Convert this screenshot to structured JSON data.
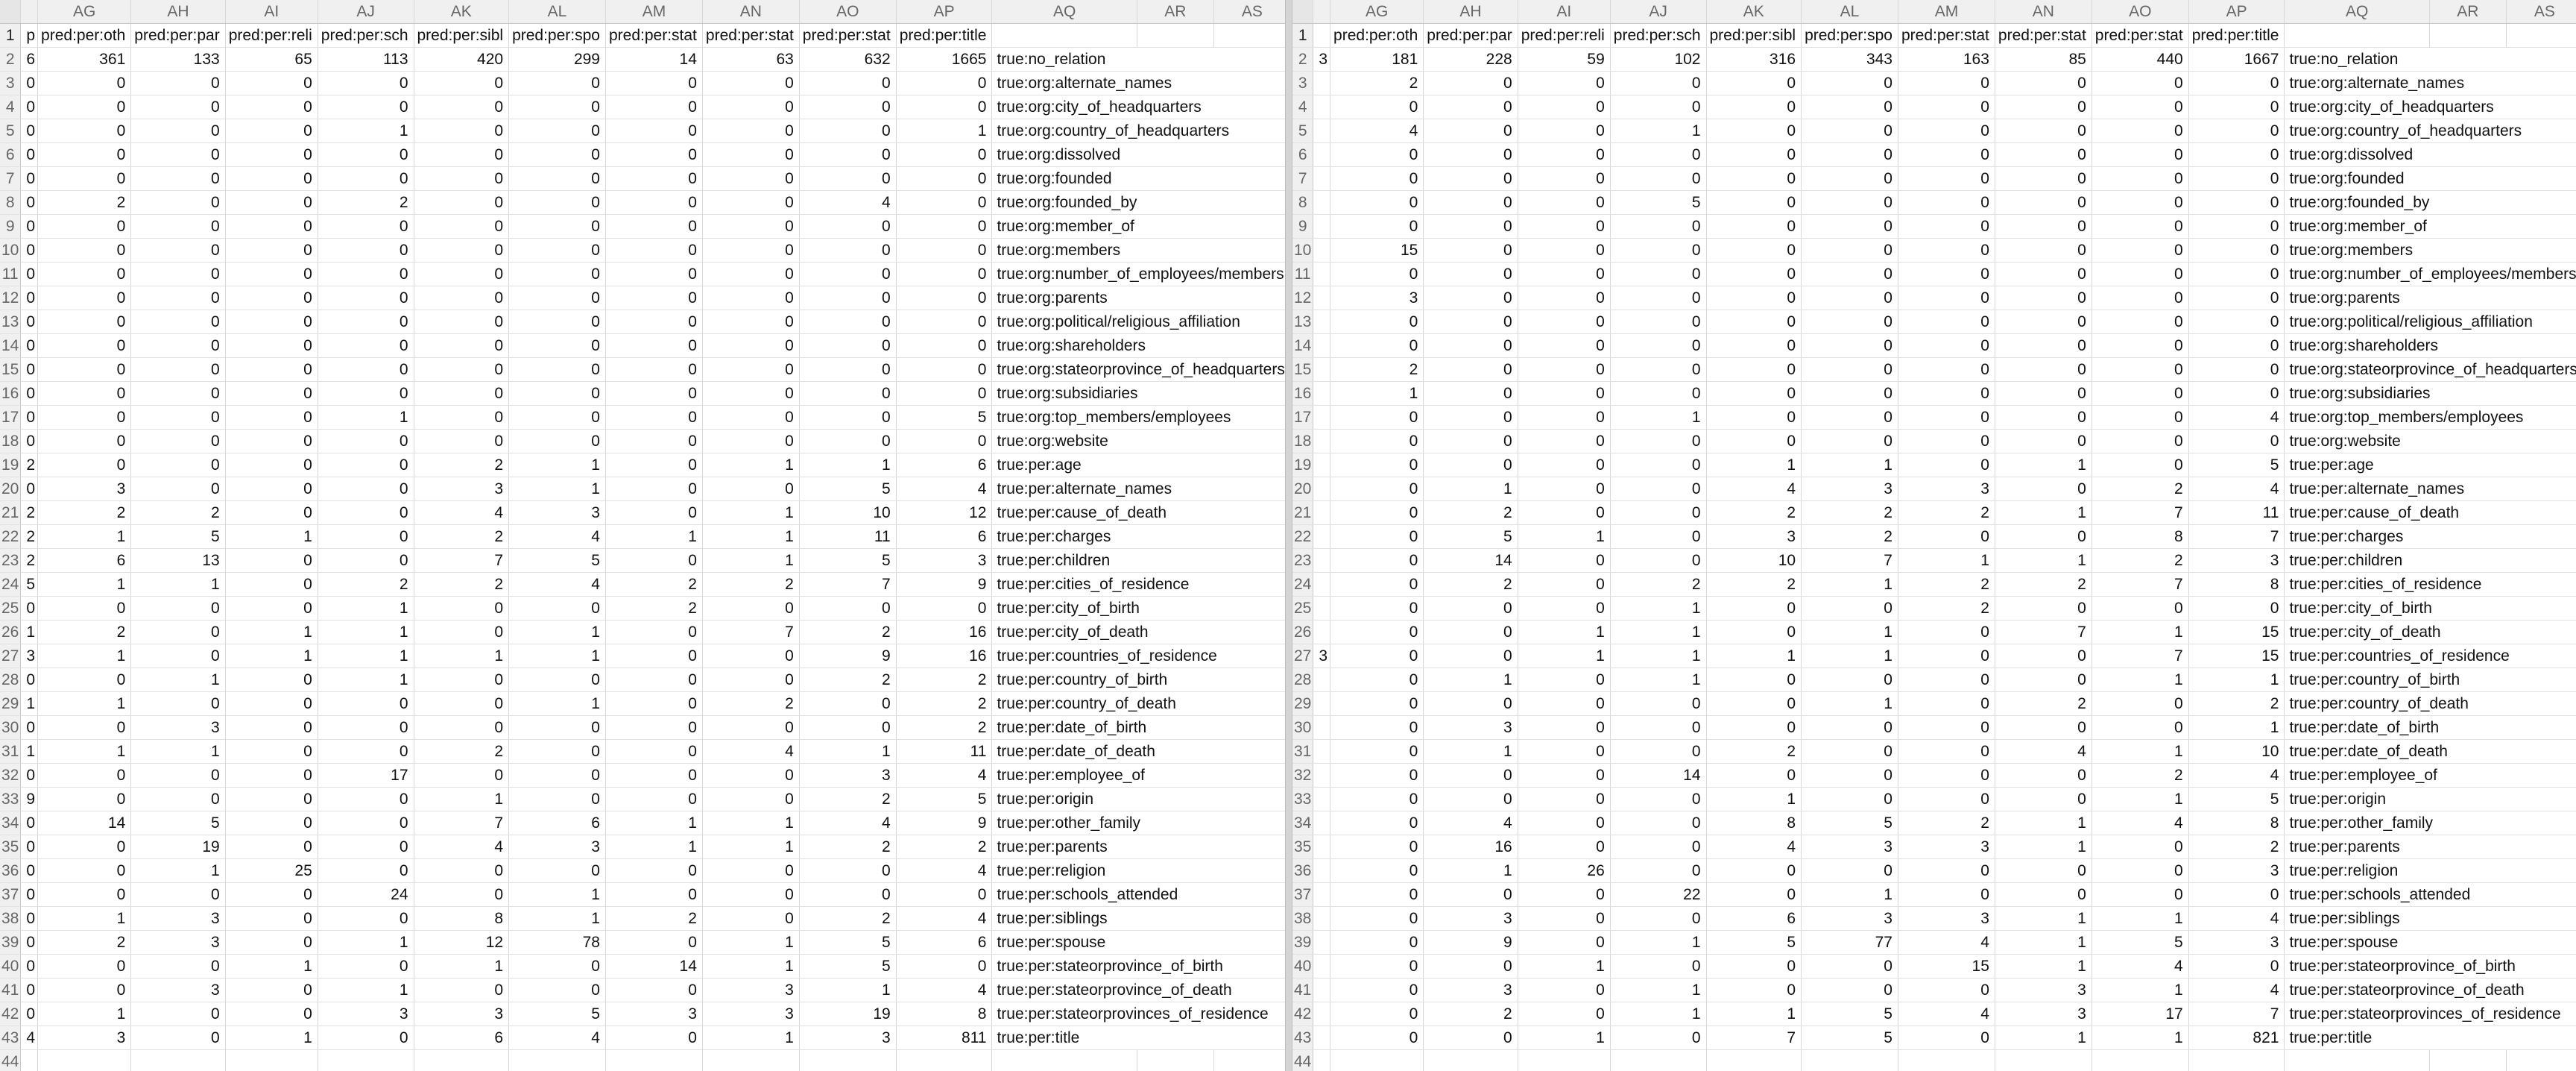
{
  "columns": [
    "AG",
    "AH",
    "AI",
    "AJ",
    "AK",
    "AL",
    "AM",
    "AN",
    "AO",
    "AP",
    "AQ",
    "AR",
    "AS"
  ],
  "row1": {
    "left_clip": "p",
    "right_clip": "",
    "headers": [
      "pred:per:oth",
      "pred:per:par",
      "pred:per:reli",
      "pred:per:sch",
      "pred:per:sibl",
      "pred:per:spo",
      "pred:per:stat",
      "pred:per:stat",
      "pred:per:stat",
      "pred:per:title"
    ]
  },
  "labels": [
    "true:no_relation",
    "true:org:alternate_names",
    "true:org:city_of_headquarters",
    "true:org:country_of_headquarters",
    "true:org:dissolved",
    "true:org:founded",
    "true:org:founded_by",
    "true:org:member_of",
    "true:org:members",
    "true:org:number_of_employees/members",
    "true:org:parents",
    "true:org:political/religious_affiliation",
    "true:org:shareholders",
    "true:org:stateorprovince_of_headquarters",
    "true:org:subsidiaries",
    "true:org:top_members/employees",
    "true:org:website",
    "true:per:age",
    "true:per:alternate_names",
    "true:per:cause_of_death",
    "true:per:charges",
    "true:per:children",
    "true:per:cities_of_residence",
    "true:per:city_of_birth",
    "true:per:city_of_death",
    "true:per:countries_of_residence",
    "true:per:country_of_birth",
    "true:per:country_of_death",
    "true:per:date_of_birth",
    "true:per:date_of_death",
    "true:per:employee_of",
    "true:per:origin",
    "true:per:other_family",
    "true:per:parents",
    "true:per:religion",
    "true:per:schools_attended",
    "true:per:siblings",
    "true:per:spouse",
    "true:per:stateorprovince_of_birth",
    "true:per:stateorprovince_of_death",
    "true:per:stateorprovinces_of_residence",
    "true:per:title"
  ],
  "left": {
    "clip": [
      "6",
      "0",
      "0",
      "0",
      "0",
      "0",
      "0",
      "0",
      "0",
      "0",
      "0",
      "0",
      "0",
      "0",
      "0",
      "0",
      "0",
      "2",
      "0",
      "2",
      "2",
      "2",
      "5",
      "0",
      "1",
      "3",
      "0",
      "1",
      "0",
      "1",
      "0",
      "9",
      "0",
      "0",
      "0",
      "0",
      "0",
      "0",
      "0",
      "0",
      "0",
      "4"
    ],
    "rows": [
      [
        361,
        133,
        65,
        113,
        420,
        299,
        14,
        63,
        632,
        1665
      ],
      [
        0,
        0,
        0,
        0,
        0,
        0,
        0,
        0,
        0,
        0
      ],
      [
        0,
        0,
        0,
        0,
        0,
        0,
        0,
        0,
        0,
        0
      ],
      [
        0,
        0,
        0,
        1,
        0,
        0,
        0,
        0,
        0,
        1
      ],
      [
        0,
        0,
        0,
        0,
        0,
        0,
        0,
        0,
        0,
        0
      ],
      [
        0,
        0,
        0,
        0,
        0,
        0,
        0,
        0,
        0,
        0
      ],
      [
        2,
        0,
        0,
        2,
        0,
        0,
        0,
        0,
        4,
        0
      ],
      [
        0,
        0,
        0,
        0,
        0,
        0,
        0,
        0,
        0,
        0
      ],
      [
        0,
        0,
        0,
        0,
        0,
        0,
        0,
        0,
        0,
        0
      ],
      [
        0,
        0,
        0,
        0,
        0,
        0,
        0,
        0,
        0,
        0
      ],
      [
        0,
        0,
        0,
        0,
        0,
        0,
        0,
        0,
        0,
        0
      ],
      [
        0,
        0,
        0,
        0,
        0,
        0,
        0,
        0,
        0,
        0
      ],
      [
        0,
        0,
        0,
        0,
        0,
        0,
        0,
        0,
        0,
        0
      ],
      [
        0,
        0,
        0,
        0,
        0,
        0,
        0,
        0,
        0,
        0
      ],
      [
        0,
        0,
        0,
        0,
        0,
        0,
        0,
        0,
        0,
        0
      ],
      [
        0,
        0,
        0,
        1,
        0,
        0,
        0,
        0,
        0,
        5
      ],
      [
        0,
        0,
        0,
        0,
        0,
        0,
        0,
        0,
        0,
        0
      ],
      [
        0,
        0,
        0,
        0,
        2,
        1,
        0,
        1,
        1,
        6
      ],
      [
        3,
        0,
        0,
        0,
        3,
        1,
        0,
        0,
        5,
        4
      ],
      [
        2,
        2,
        0,
        0,
        4,
        3,
        0,
        1,
        10,
        12
      ],
      [
        1,
        5,
        1,
        0,
        2,
        4,
        1,
        1,
        11,
        6
      ],
      [
        6,
        13,
        0,
        0,
        7,
        5,
        0,
        1,
        5,
        3
      ],
      [
        1,
        1,
        0,
        2,
        2,
        4,
        2,
        2,
        7,
        9
      ],
      [
        0,
        0,
        0,
        1,
        0,
        0,
        2,
        0,
        0,
        0
      ],
      [
        2,
        0,
        1,
        1,
        0,
        1,
        0,
        7,
        2,
        16
      ],
      [
        1,
        0,
        1,
        1,
        1,
        1,
        0,
        0,
        9,
        16
      ],
      [
        0,
        1,
        0,
        1,
        0,
        0,
        0,
        0,
        2,
        2
      ],
      [
        1,
        0,
        0,
        0,
        0,
        1,
        0,
        2,
        0,
        2
      ],
      [
        0,
        3,
        0,
        0,
        0,
        0,
        0,
        0,
        0,
        2
      ],
      [
        1,
        1,
        0,
        0,
        2,
        0,
        0,
        4,
        1,
        11
      ],
      [
        0,
        0,
        0,
        17,
        0,
        0,
        0,
        0,
        3,
        4
      ],
      [
        0,
        0,
        0,
        0,
        1,
        0,
        0,
        0,
        2,
        5
      ],
      [
        14,
        5,
        0,
        0,
        7,
        6,
        1,
        1,
        4,
        9
      ],
      [
        0,
        19,
        0,
        0,
        4,
        3,
        1,
        1,
        2,
        2
      ],
      [
        0,
        1,
        25,
        0,
        0,
        0,
        0,
        0,
        0,
        4
      ],
      [
        0,
        0,
        0,
        24,
        0,
        1,
        0,
        0,
        0,
        0
      ],
      [
        1,
        3,
        0,
        0,
        8,
        1,
        2,
        0,
        2,
        4
      ],
      [
        2,
        3,
        0,
        1,
        12,
        78,
        0,
        1,
        5,
        6
      ],
      [
        0,
        0,
        1,
        0,
        1,
        0,
        14,
        1,
        5,
        0
      ],
      [
        0,
        3,
        0,
        1,
        0,
        0,
        0,
        3,
        1,
        4
      ],
      [
        1,
        0,
        0,
        3,
        3,
        5,
        3,
        3,
        19,
        8
      ],
      [
        3,
        0,
        1,
        0,
        6,
        4,
        0,
        1,
        3,
        811
      ]
    ]
  },
  "right": {
    "clip": [
      "3",
      "",
      "",
      "",
      "",
      "",
      "",
      "",
      "",
      "",
      "",
      "",
      "",
      "",
      "",
      "",
      "",
      "",
      "",
      "",
      "",
      "",
      "",
      "",
      "",
      "3",
      "",
      "",
      "",
      "",
      "",
      "",
      "",
      "",
      "",
      "",
      "",
      "",
      "",
      "",
      "",
      ""
    ],
    "rows": [
      [
        181,
        228,
        59,
        102,
        316,
        343,
        163,
        85,
        440,
        1667
      ],
      [
        2,
        0,
        0,
        0,
        0,
        0,
        0,
        0,
        0,
        0
      ],
      [
        0,
        0,
        0,
        0,
        0,
        0,
        0,
        0,
        0,
        0
      ],
      [
        4,
        0,
        0,
        1,
        0,
        0,
        0,
        0,
        0,
        0
      ],
      [
        0,
        0,
        0,
        0,
        0,
        0,
        0,
        0,
        0,
        0
      ],
      [
        0,
        0,
        0,
        0,
        0,
        0,
        0,
        0,
        0,
        0
      ],
      [
        0,
        0,
        0,
        5,
        0,
        0,
        0,
        0,
        0,
        0
      ],
      [
        0,
        0,
        0,
        0,
        0,
        0,
        0,
        0,
        0,
        0
      ],
      [
        15,
        0,
        0,
        0,
        0,
        0,
        0,
        0,
        0,
        0
      ],
      [
        0,
        0,
        0,
        0,
        0,
        0,
        0,
        0,
        0,
        0
      ],
      [
        3,
        0,
        0,
        0,
        0,
        0,
        0,
        0,
        0,
        0
      ],
      [
        0,
        0,
        0,
        0,
        0,
        0,
        0,
        0,
        0,
        0
      ],
      [
        0,
        0,
        0,
        0,
        0,
        0,
        0,
        0,
        0,
        0
      ],
      [
        2,
        0,
        0,
        0,
        0,
        0,
        0,
        0,
        0,
        0
      ],
      [
        1,
        0,
        0,
        0,
        0,
        0,
        0,
        0,
        0,
        0
      ],
      [
        0,
        0,
        0,
        1,
        0,
        0,
        0,
        0,
        0,
        4
      ],
      [
        0,
        0,
        0,
        0,
        0,
        0,
        0,
        0,
        0,
        0
      ],
      [
        0,
        0,
        0,
        0,
        1,
        1,
        0,
        1,
        0,
        5
      ],
      [
        0,
        1,
        0,
        0,
        4,
        3,
        3,
        0,
        2,
        4
      ],
      [
        0,
        2,
        0,
        0,
        2,
        2,
        2,
        1,
        7,
        11
      ],
      [
        0,
        5,
        1,
        0,
        3,
        2,
        0,
        0,
        8,
        7
      ],
      [
        0,
        14,
        0,
        0,
        10,
        7,
        1,
        1,
        2,
        3
      ],
      [
        0,
        2,
        0,
        2,
        2,
        1,
        2,
        2,
        7,
        8
      ],
      [
        0,
        0,
        0,
        1,
        0,
        0,
        2,
        0,
        0,
        0
      ],
      [
        0,
        0,
        1,
        1,
        0,
        1,
        0,
        7,
        1,
        15
      ],
      [
        0,
        0,
        1,
        1,
        1,
        1,
        0,
        0,
        7,
        15
      ],
      [
        0,
        1,
        0,
        1,
        0,
        0,
        0,
        0,
        1,
        1
      ],
      [
        0,
        0,
        0,
        0,
        0,
        1,
        0,
        2,
        0,
        2
      ],
      [
        0,
        3,
        0,
        0,
        0,
        0,
        0,
        0,
        0,
        1
      ],
      [
        0,
        1,
        0,
        0,
        2,
        0,
        0,
        4,
        1,
        10
      ],
      [
        0,
        0,
        0,
        14,
        0,
        0,
        0,
        0,
        2,
        4
      ],
      [
        0,
        0,
        0,
        0,
        1,
        0,
        0,
        0,
        1,
        5
      ],
      [
        0,
        4,
        0,
        0,
        8,
        5,
        2,
        1,
        4,
        8
      ],
      [
        0,
        16,
        0,
        0,
        4,
        3,
        3,
        1,
        0,
        2
      ],
      [
        0,
        1,
        26,
        0,
        0,
        0,
        0,
        0,
        0,
        3
      ],
      [
        0,
        0,
        0,
        22,
        0,
        1,
        0,
        0,
        0,
        0
      ],
      [
        0,
        3,
        0,
        0,
        6,
        3,
        3,
        1,
        1,
        4
      ],
      [
        0,
        9,
        0,
        1,
        5,
        77,
        4,
        1,
        5,
        3
      ],
      [
        0,
        0,
        1,
        0,
        0,
        0,
        15,
        1,
        4,
        0
      ],
      [
        0,
        3,
        0,
        1,
        0,
        0,
        0,
        3,
        1,
        4
      ],
      [
        0,
        2,
        0,
        1,
        1,
        5,
        4,
        3,
        17,
        7
      ],
      [
        0,
        0,
        1,
        0,
        7,
        5,
        0,
        1,
        1,
        821
      ]
    ]
  },
  "empty_row_number": "44"
}
